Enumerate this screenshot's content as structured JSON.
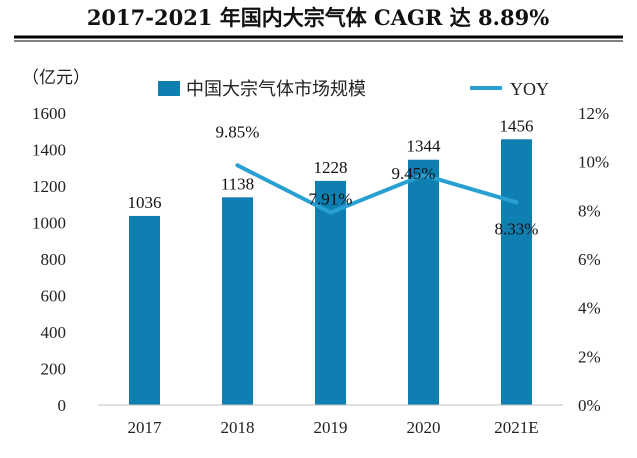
{
  "title": "2017-2021 年国内大宗气体 CAGR 达 8.89%",
  "colors": {
    "bar": "#0f7fb1",
    "line": "#2aa0d2",
    "rule": "#000000"
  },
  "chart_data": {
    "type": "bar",
    "categories": [
      "2017",
      "2018",
      "2019",
      "2020",
      "2021E"
    ],
    "series": [
      {
        "name": "中国大宗气体市场规模",
        "type": "bar",
        "axis": "left",
        "values": [
          1036,
          1138,
          1228,
          1344,
          1456
        ],
        "labels": [
          "1036",
          "1138",
          "1228",
          "1344",
          "1456"
        ]
      },
      {
        "name": "YOY",
        "type": "line",
        "axis": "right",
        "x": [
          "2018",
          "2019",
          "2020",
          "2021E"
        ],
        "values": [
          9.85,
          7.91,
          9.45,
          8.33
        ],
        "labels": [
          "9.85%",
          "7.91%",
          "9.45%",
          "8.33%"
        ]
      }
    ],
    "ylabel": "（亿元）",
    "ylim": [
      0,
      1600
    ],
    "yticks": [
      "0",
      "200",
      "400",
      "600",
      "800",
      "1000",
      "1200",
      "1400",
      "1600"
    ],
    "y2lim": [
      0,
      12
    ],
    "y2ticks": [
      "0%",
      "2%",
      "4%",
      "6%",
      "8%",
      "10%",
      "12%"
    ],
    "grid": false,
    "legend": "top"
  }
}
